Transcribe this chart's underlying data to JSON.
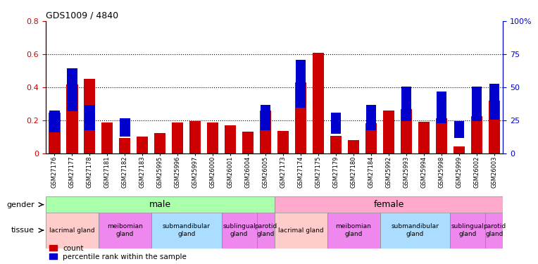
{
  "title": "GDS1009 / 4840",
  "samples": [
    "GSM27176",
    "GSM27177",
    "GSM27178",
    "GSM27181",
    "GSM27182",
    "GSM27183",
    "GSM25995",
    "GSM25996",
    "GSM25997",
    "GSM26000",
    "GSM26001",
    "GSM26004",
    "GSM26005",
    "GSM27173",
    "GSM27174",
    "GSM27175",
    "GSM27179",
    "GSM27180",
    "GSM27184",
    "GSM25992",
    "GSM25993",
    "GSM25994",
    "GSM25998",
    "GSM25999",
    "GSM26002",
    "GSM26003"
  ],
  "count_values": [
    0.245,
    0.415,
    0.45,
    0.185,
    0.09,
    0.1,
    0.12,
    0.185,
    0.195,
    0.185,
    0.17,
    0.13,
    0.26,
    0.135,
    0.43,
    0.61,
    0.105,
    0.08,
    0.18,
    0.26,
    0.265,
    0.19,
    0.21,
    0.04,
    0.225,
    0.32
  ],
  "percentile_values_pct": [
    17,
    33,
    19,
    0,
    14,
    0,
    0,
    0,
    0,
    0,
    0,
    0,
    19,
    1,
    36,
    0,
    16,
    0,
    19,
    0,
    26,
    0,
    24,
    13,
    26,
    27
  ],
  "bar_color": "#cc0000",
  "percentile_color": "#0000cc",
  "male_color": "#aaffaa",
  "female_color": "#ffaacc",
  "tissue_colors": {
    "lacrimal gland": "#ffcccc",
    "meibomian\ngland": "#ee88ee",
    "submandibular\ngland": "#aaddff",
    "sublingual\ngland": "#ee88ee",
    "parotid\ngland": "#ee88ee"
  },
  "ylim_left": [
    0,
    0.8
  ],
  "ylim_right": [
    0,
    100
  ],
  "yticks_left": [
    0,
    0.2,
    0.4,
    0.6,
    0.8
  ],
  "yticks_right": [
    0,
    25,
    50,
    75,
    100
  ],
  "background_color": "#ffffff",
  "tissue_groups_male": [
    {
      "label": "lacrimal gland",
      "span": [
        0,
        2
      ]
    },
    {
      "label": "meibomian\ngland",
      "span": [
        3,
        5
      ]
    },
    {
      "label": "submandibular\ngland",
      "span": [
        6,
        9
      ]
    },
    {
      "label": "sublingual\ngland",
      "span": [
        10,
        11
      ]
    },
    {
      "label": "parotid\ngland",
      "span": [
        12,
        12
      ]
    }
  ],
  "tissue_groups_female": [
    {
      "label": "lacrimal gland",
      "span": [
        13,
        15
      ]
    },
    {
      "label": "meibomian\ngland",
      "span": [
        16,
        18
      ]
    },
    {
      "label": "submandibular\ngland",
      "span": [
        19,
        22
      ]
    },
    {
      "label": "sublingual\ngland",
      "span": [
        23,
        24
      ]
    },
    {
      "label": "parotid\ngland",
      "span": [
        25,
        25
      ]
    }
  ]
}
